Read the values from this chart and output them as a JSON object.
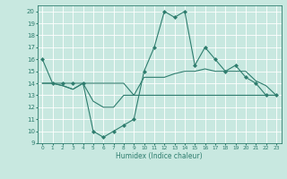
{
  "xlabel": "Humidex (Indice chaleur)",
  "ylabel": "",
  "x_values": [
    0,
    1,
    2,
    3,
    4,
    5,
    6,
    7,
    8,
    9,
    10,
    11,
    12,
    13,
    14,
    15,
    16,
    17,
    18,
    19,
    20,
    21,
    22,
    23
  ],
  "line1": [
    16,
    14,
    14,
    14,
    14,
    10,
    9.5,
    10,
    10.5,
    11,
    15,
    17,
    20,
    19.5,
    20,
    15.5,
    17,
    16,
    15,
    15.5,
    14.5,
    14,
    13,
    13
  ],
  "line2": [
    14,
    14,
    13.8,
    13.5,
    14,
    14,
    14,
    14,
    14,
    13,
    14.5,
    14.5,
    14.5,
    14.8,
    15,
    15,
    15.2,
    15,
    15,
    15,
    15,
    14.2,
    13.8,
    13
  ],
  "line3": [
    14,
    14,
    13.8,
    13.5,
    14,
    12.5,
    12,
    12,
    13,
    13,
    13,
    13,
    13,
    13,
    13,
    13,
    13,
    13,
    13,
    13,
    13,
    13,
    13,
    13
  ],
  "color": "#2e7d6e",
  "bg_color": "#c8e8e0",
  "grid_color": "#ffffff",
  "ylim": [
    9,
    20.5
  ],
  "yticks": [
    9,
    10,
    11,
    12,
    13,
    14,
    15,
    16,
    17,
    18,
    19,
    20
  ],
  "marker": "D",
  "markersize": 2.0,
  "linewidth": 0.8
}
